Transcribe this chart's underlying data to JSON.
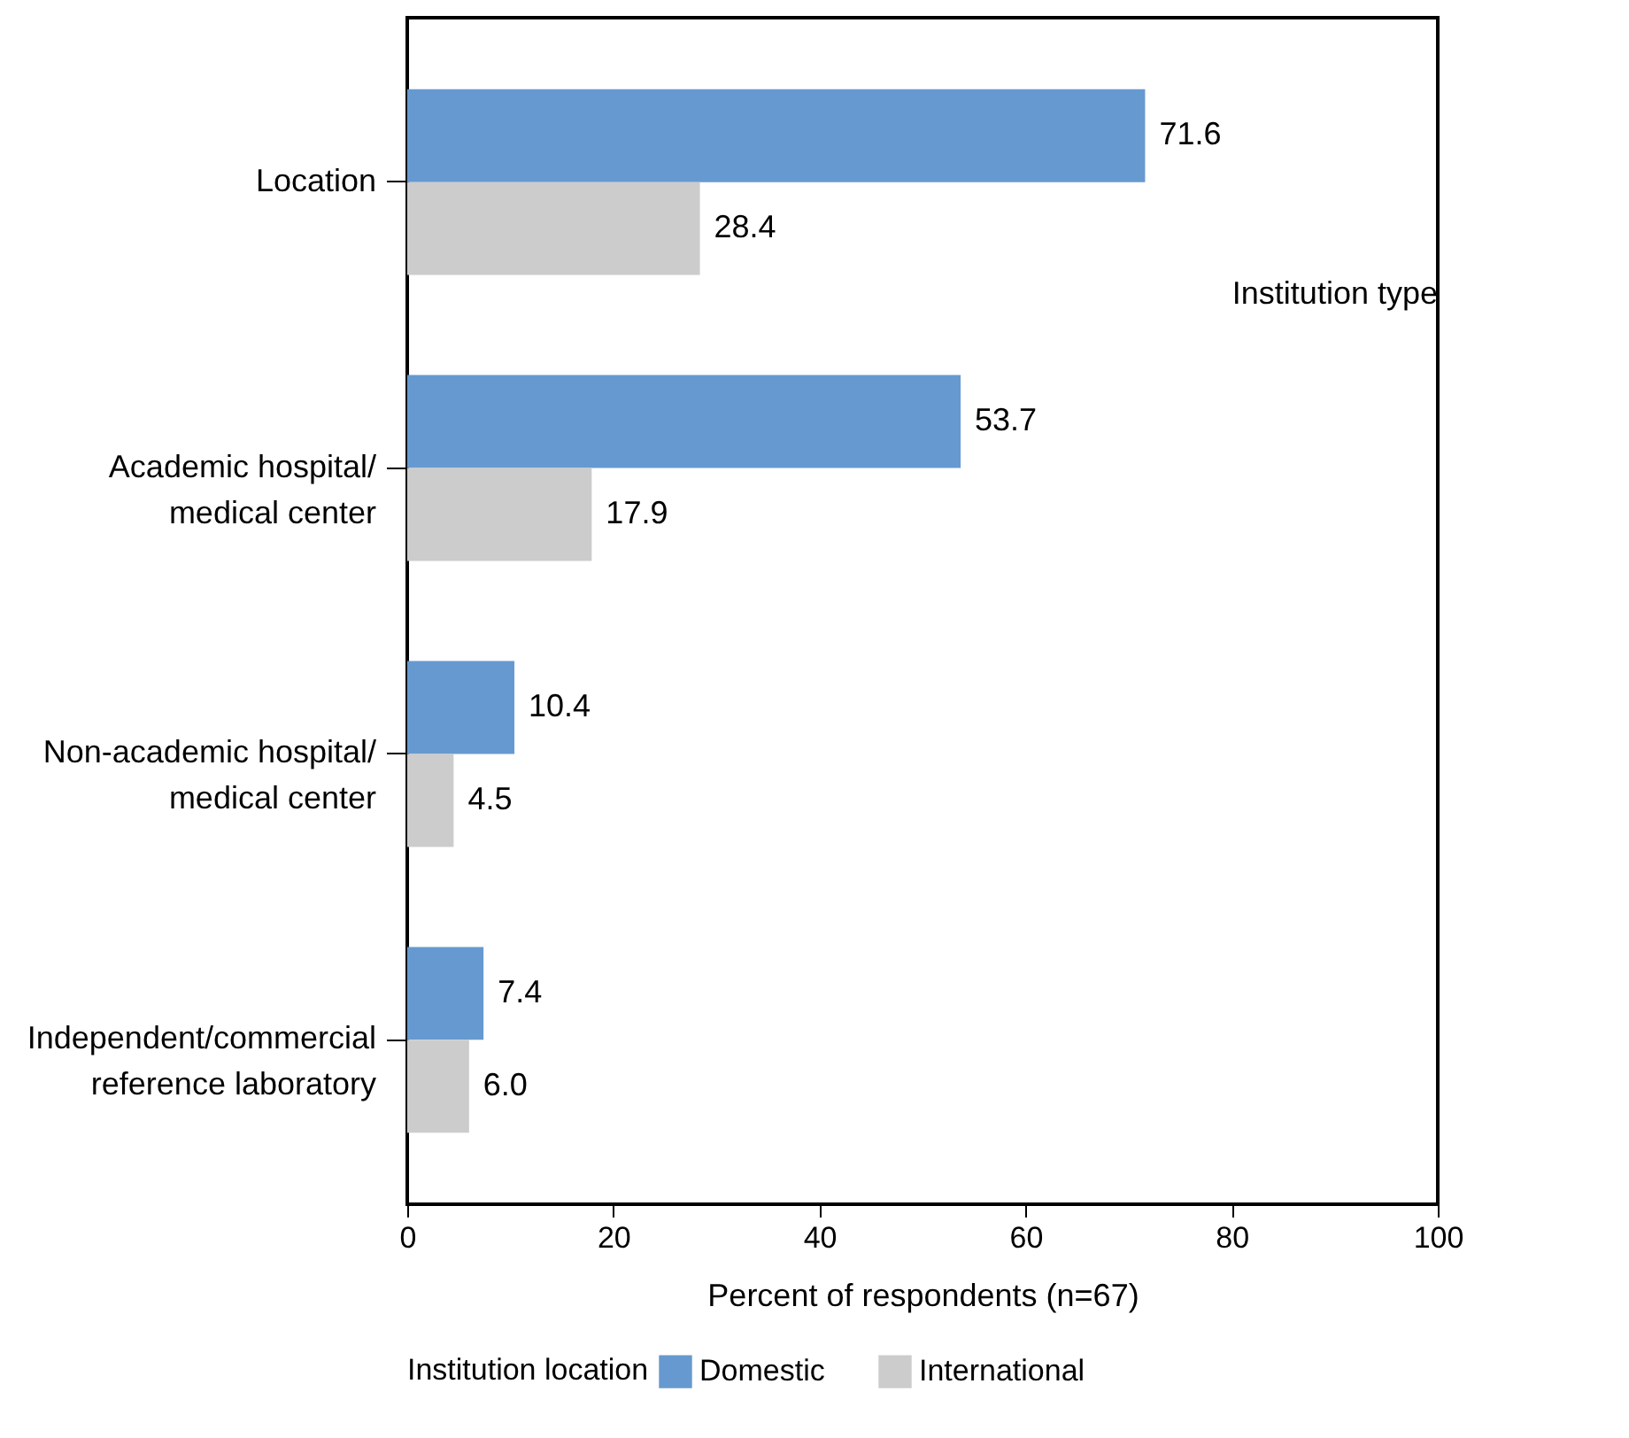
{
  "chart_data": {
    "type": "bar",
    "orientation": "horizontal",
    "xlabel": "Percent of respondents (n=67)",
    "legend_title": "Institution location",
    "legend": "bottom",
    "categories": [
      "Location",
      "Academic hospital/\nmedical center",
      "Non-academic hospital/\nmedical center",
      "Independent/commercial\nreference laboratory"
    ],
    "series": [
      {
        "name": "Domestic",
        "color": "#6699cf",
        "values": [
          71.6,
          53.7,
          10.4,
          7.4
        ],
        "value_labels": [
          "71.6",
          "53.7",
          "10.4",
          "7.4"
        ]
      },
      {
        "name": "International",
        "color": "#cccccc",
        "values": [
          28.4,
          17.9,
          4.5,
          6.0
        ],
        "value_labels": [
          "28.4",
          "17.9",
          "4.5",
          "6.0"
        ]
      }
    ],
    "xlim": [
      0,
      100
    ],
    "xticks": [
      0,
      20,
      40,
      60,
      80,
      100
    ],
    "grid": false,
    "data_labels": true,
    "annotations": [
      "Institution type"
    ]
  }
}
